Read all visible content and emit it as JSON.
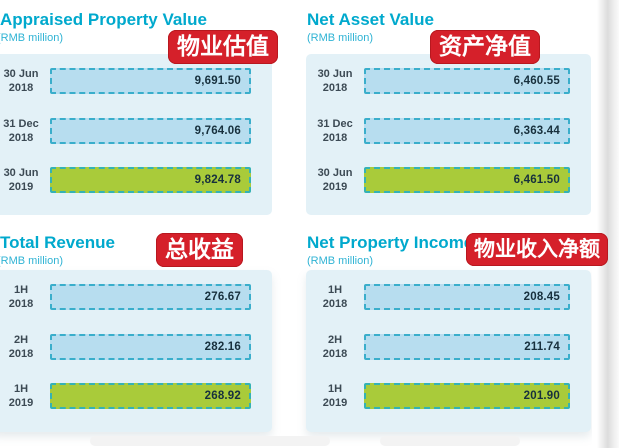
{
  "palette": {
    "title_teal": "#00a9cd",
    "subtitle_teal": "#2fb3d4",
    "panel_background": "#e3f1f7",
    "bar_blue": "#b7ddef",
    "bar_green_highlight": "#a9cb3a",
    "bar_dashed_border": "#3aaecb",
    "badge_red": "#d5202a",
    "badge_text": "#ffffff",
    "value_text": "#17303d",
    "category_label_text": "#3c4a54"
  },
  "chart_data": [
    {
      "type": "bar",
      "orientation": "horizontal",
      "title": "Appraised Property Value",
      "unit_label": "(RMB million)",
      "badge_cn": "物业估值",
      "categories": [
        "30 Jun 2018",
        "31 Dec 2018",
        "30 Jun 2019"
      ],
      "values": [
        9691.5,
        9764.06,
        9824.78
      ],
      "highlight_index": 2,
      "layout_note": "equal-length decorative bars, value printed inside right-aligned, latest period green",
      "rows": [
        {
          "label_top": "30 Jun",
          "label_bottom": "2018",
          "value_label": "9,691.50"
        },
        {
          "label_top": "31 Dec",
          "label_bottom": "2018",
          "value_label": "9,764.06"
        },
        {
          "label_top": "30 Jun",
          "label_bottom": "2019",
          "value_label": "9,824.78"
        }
      ]
    },
    {
      "type": "bar",
      "orientation": "horizontal",
      "title": "Net Asset Value",
      "unit_label": "(RMB million)",
      "badge_cn": "资产净值",
      "categories": [
        "30 Jun 2018",
        "31 Dec 2018",
        "30 Jun 2019"
      ],
      "values": [
        6460.55,
        6363.44,
        6461.5
      ],
      "highlight_index": 2,
      "rows": [
        {
          "label_top": "30 Jun",
          "label_bottom": "2018",
          "value_label": "6,460.55"
        },
        {
          "label_top": "31 Dec",
          "label_bottom": "2018",
          "value_label": "6,363.44"
        },
        {
          "label_top": "30 Jun",
          "label_bottom": "2019",
          "value_label": "6,461.50"
        }
      ]
    },
    {
      "type": "bar",
      "orientation": "horizontal",
      "title": "Total Revenue",
      "unit_label": "(RMB million)",
      "badge_cn": "总收益",
      "categories": [
        "1H 2018",
        "2H 2018",
        "1H 2019"
      ],
      "values": [
        276.67,
        282.16,
        268.92
      ],
      "highlight_index": 2,
      "rows": [
        {
          "label_top": "1H",
          "label_bottom": "2018",
          "value_label": "276.67"
        },
        {
          "label_top": "2H",
          "label_bottom": "2018",
          "value_label": "282.16"
        },
        {
          "label_top": "1H",
          "label_bottom": "2019",
          "value_label": "268.92"
        }
      ]
    },
    {
      "type": "bar",
      "orientation": "horizontal",
      "title": "Net Property Income",
      "unit_label": "(RMB million)",
      "badge_cn": "物业收入净额",
      "categories": [
        "1H 2018",
        "2H 2018",
        "1H 2019"
      ],
      "values": [
        208.45,
        211.74,
        201.9
      ],
      "highlight_index": 2,
      "rows": [
        {
          "label_top": "1H",
          "label_bottom": "2018",
          "value_label": "208.45"
        },
        {
          "label_top": "2H",
          "label_bottom": "2018",
          "value_label": "211.74"
        },
        {
          "label_top": "1H",
          "label_bottom": "2019",
          "value_label": "201.90"
        }
      ]
    }
  ]
}
